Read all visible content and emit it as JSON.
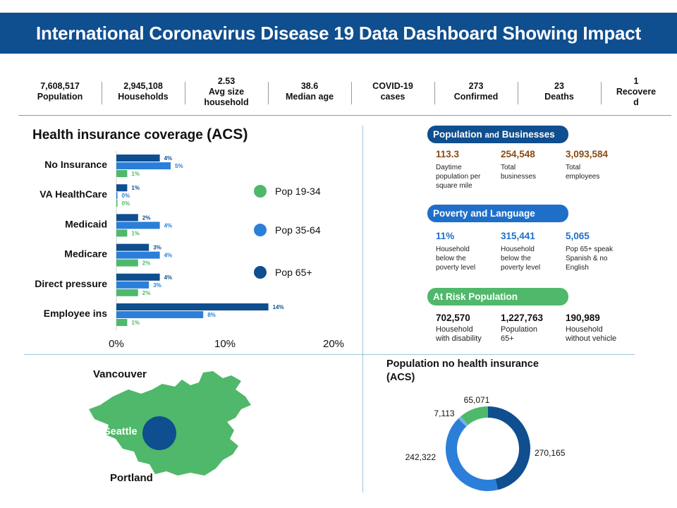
{
  "title": "International Coronavirus Disease 19 Data Dashboard Showing Impact",
  "stats": [
    {
      "lines": [
        "7,608,517",
        "Population"
      ]
    },
    {
      "lines": [
        "2,945,108",
        "Households"
      ]
    },
    {
      "lines": [
        "2.53",
        "Avg size",
        "household"
      ]
    },
    {
      "lines": [
        "38.6",
        "Median age"
      ]
    },
    {
      "lines": [
        "COVID-19",
        "cases"
      ]
    },
    {
      "lines": [
        "273",
        "Confirmed"
      ]
    },
    {
      "lines": [
        "23",
        "Deaths"
      ]
    },
    {
      "lines": [
        "1",
        "Recovere",
        "d"
      ]
    }
  ],
  "colors": {
    "title_bg": "#0f4e8f",
    "dark_blue": "#0f4e8f",
    "mid_blue": "#2b7fd9",
    "green": "#4fb86a",
    "light_blue": "#74b3ee",
    "orange_value": "#8b4a12",
    "blue_value": "#1f6fc9"
  },
  "health_insurance": {
    "title_main": "Health insurance coverage",
    "title_suffix": "(ACS)"
  },
  "chart_data": [
    {
      "type": "bar",
      "orientation": "horizontal",
      "title": "Health insurance coverage (ACS)",
      "categories": [
        "No Insurance",
        "VA HealthCare",
        "Medicaid",
        "Medicare",
        "Direct pressure",
        "Employee ins"
      ],
      "series": [
        {
          "name": "Pop 65+",
          "color": "#0f4e8f",
          "values": [
            4,
            1,
            2,
            3,
            4,
            14
          ],
          "labels": [
            "4%",
            "1%",
            "2%",
            "3%",
            "4%",
            "14%"
          ]
        },
        {
          "name": "Pop 35-64",
          "color": "#2b7fd9",
          "values": [
            5,
            0,
            4,
            4,
            3,
            8
          ],
          "labels": [
            "5%",
            "0%",
            "4%",
            "4%",
            "3%",
            "8%"
          ]
        },
        {
          "name": "Pop 19-34",
          "color": "#4fb86a",
          "values": [
            1,
            0,
            1,
            2,
            2,
            1
          ],
          "labels": [
            "1%",
            "0%",
            "1%",
            "2%",
            "2%",
            "1%"
          ]
        }
      ],
      "xlim": [
        0,
        20
      ],
      "xticks": [
        "0%",
        "10%",
        "20%"
      ],
      "legend": [
        "Pop 19-34",
        "Pop 35-64",
        "Pop 65+"
      ],
      "legend_position": "right"
    },
    {
      "type": "pie",
      "variant": "donut",
      "title": "Population no health insurance (ACS)",
      "values": [
        270165,
        242322,
        7113,
        65071
      ],
      "labels": [
        "270,165",
        "242,322",
        "7,113",
        "65,071"
      ],
      "colors": [
        "#0f4e8f",
        "#2b7fd9",
        "#74b3ee",
        "#4fb86a"
      ]
    }
  ],
  "sections": {
    "population": {
      "title_main": "Population",
      "title_small": "and",
      "title_end": "Businesses",
      "metrics": [
        {
          "value": "113.3",
          "label": [
            "Daytime",
            "population per",
            "square mile"
          ]
        },
        {
          "value": "254,548",
          "label": [
            "Total",
            "businesses"
          ]
        },
        {
          "value": "3,093,584",
          "label": [
            "Total",
            "employees"
          ]
        }
      ]
    },
    "poverty": {
      "title": "Poverty and Language",
      "metrics": [
        {
          "value": "11%",
          "label": [
            "Household",
            "below the",
            "poverty level"
          ]
        },
        {
          "value": "315,441",
          "label": [
            "Household",
            "below the",
            "poverty level"
          ]
        },
        {
          "value": "5,065",
          "label": [
            "Pop 65+ speak",
            "Spanish & no",
            "English"
          ]
        }
      ]
    },
    "risk": {
      "title": "At Risk Population",
      "metrics": [
        {
          "value": "702,570",
          "label": [
            "Household",
            "with disability"
          ]
        },
        {
          "value": "1,227,763",
          "label": [
            "Population",
            "65+"
          ]
        },
        {
          "value": "190,989",
          "label": [
            "Household",
            "without vehicle"
          ]
        }
      ]
    }
  },
  "map": {
    "labels": [
      "Vancouver",
      "Seattle",
      "Portland"
    ]
  },
  "donut": {
    "title": "Population no health insurance (ACS)"
  }
}
